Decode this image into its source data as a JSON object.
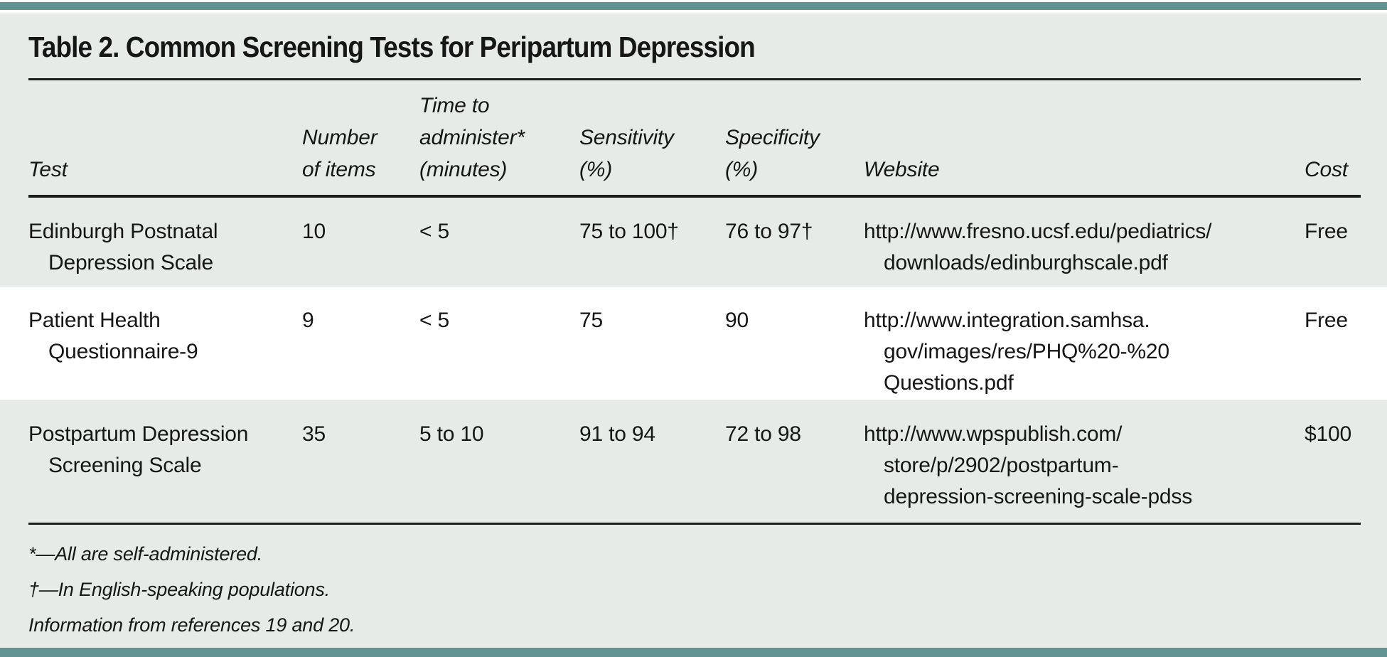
{
  "page": {
    "accent_teal": "#639390",
    "panel_background": "#e6ebe7",
    "alt_row_background": "#ffffff",
    "text_color": "#161616"
  },
  "table": {
    "title": "Table 2. Common Screening Tests for Peripartum Depression",
    "headers": [
      {
        "lines": [
          "Test"
        ]
      },
      {
        "lines": [
          "Number",
          "of items"
        ]
      },
      {
        "lines": [
          "Time to",
          "administer*",
          "(minutes)"
        ]
      },
      {
        "lines": [
          "Sensitivity",
          "(%)"
        ]
      },
      {
        "lines": [
          "Specificity",
          "(%)"
        ]
      },
      {
        "lines": [
          "Website"
        ]
      },
      {
        "lines": [
          "Cost"
        ]
      }
    ],
    "rows": [
      {
        "test": [
          "Edinburgh Postnatal",
          "Depression Scale"
        ],
        "items": "10",
        "time": "< 5",
        "sensitivity": "75 to 100†",
        "specificity": "76 to 97†",
        "website": [
          "http://www.fresno.ucsf.edu/pediatrics/",
          "downloads/edinburghscale.pdf"
        ],
        "cost": "Free"
      },
      {
        "test": [
          "Patient Health",
          "Questionnaire-9"
        ],
        "items": "9",
        "time": "< 5",
        "sensitivity": "75",
        "specificity": "90",
        "website": [
          "http://www.integration.samhsa.",
          "gov/images/res/PHQ%20-%20",
          "Questions.pdf"
        ],
        "cost": "Free"
      },
      {
        "test": [
          "Postpartum Depression",
          "Screening Scale"
        ],
        "items": "35",
        "time": "5 to 10",
        "sensitivity": "91 to 94",
        "specificity": "72 to 98",
        "website": [
          "http://www.wpspublish.com/",
          "store/p/2902/postpartum-",
          "depression-screening-scale-pdss"
        ],
        "cost": "$100"
      }
    ],
    "footnotes": [
      "*—All are self-administered.",
      "†—In English-speaking populations."
    ],
    "source": "Information from references 19 and 20."
  }
}
